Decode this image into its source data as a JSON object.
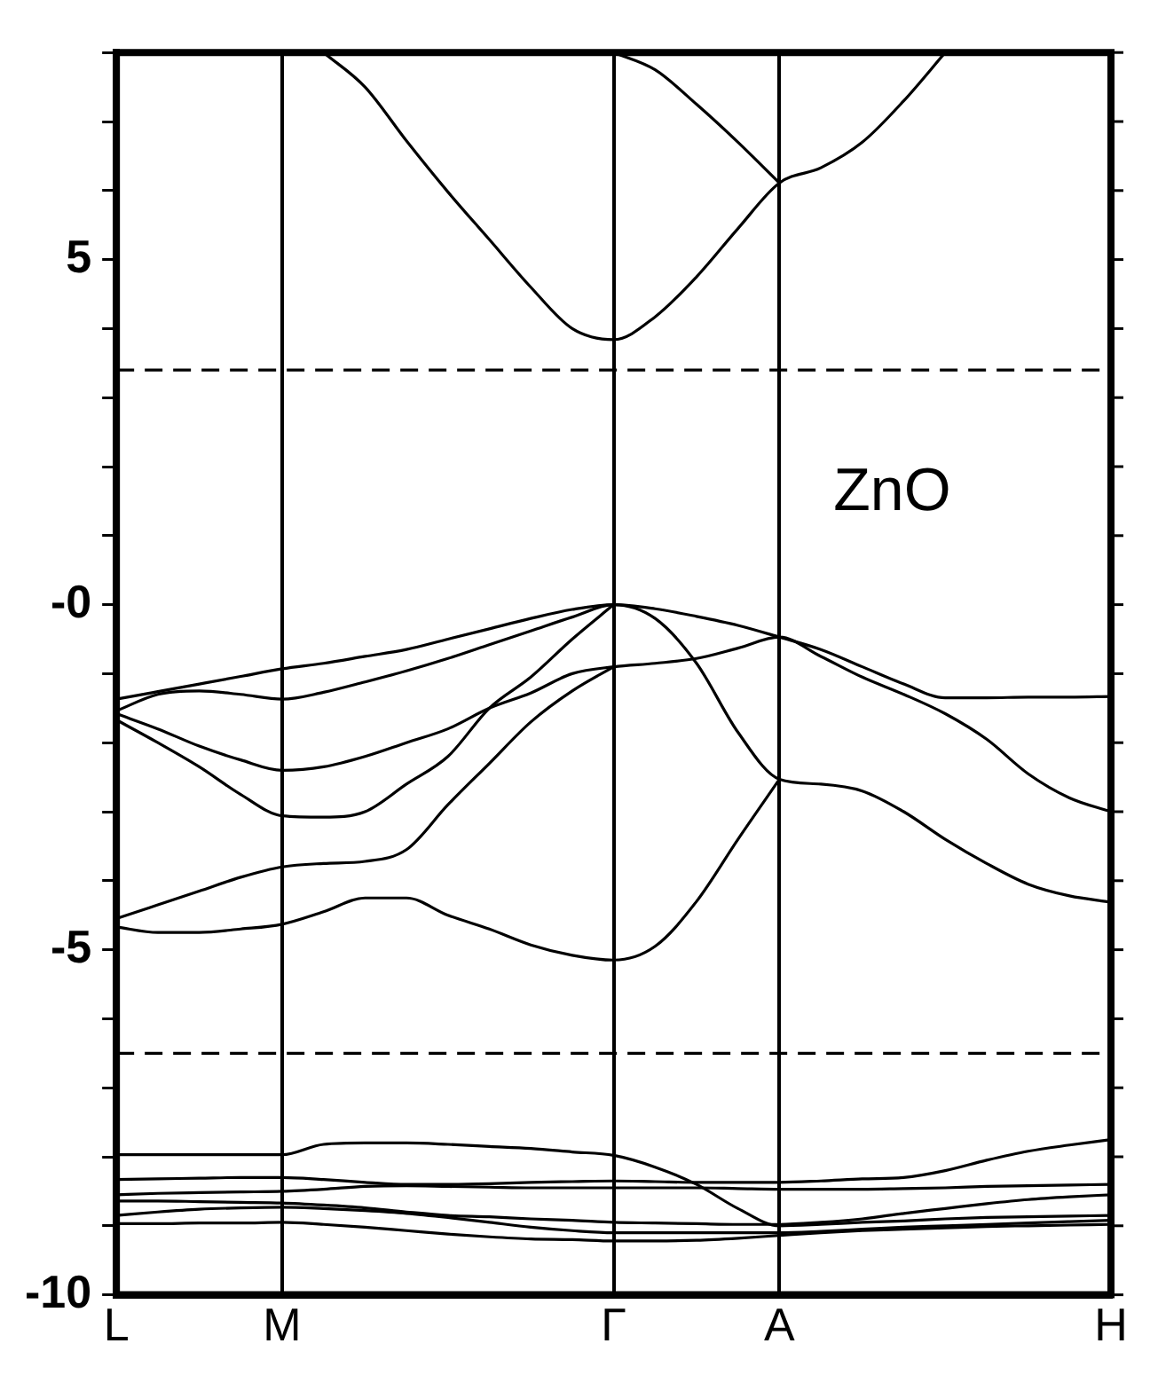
{
  "chart_data": {
    "type": "line",
    "annotations": [
      "ZnO"
    ],
    "categories": [
      "L",
      null,
      null,
      null,
      "M",
      null,
      null,
      null,
      null,
      null,
      null,
      null,
      "Γ",
      null,
      null,
      null,
      "A",
      null,
      null,
      null,
      null,
      null,
      null,
      null,
      "H"
    ],
    "ylim": [
      -10,
      8
    ],
    "yticks": [
      {
        "value": -10,
        "label": "-10"
      },
      {
        "value": -9,
        "label": null
      },
      {
        "value": -8,
        "label": null
      },
      {
        "value": -7,
        "label": null
      },
      {
        "value": -6,
        "label": null
      },
      {
        "value": -5,
        "label": "-5"
      },
      {
        "value": -4,
        "label": null
      },
      {
        "value": -3,
        "label": null
      },
      {
        "value": -2,
        "label": null
      },
      {
        "value": -1,
        "label": null
      },
      {
        "value": 0,
        "label": "-0"
      },
      {
        "value": 1,
        "label": null
      },
      {
        "value": 2,
        "label": null
      },
      {
        "value": 3,
        "label": null
      },
      {
        "value": 4,
        "label": null
      },
      {
        "value": 5,
        "label": "5"
      },
      {
        "value": 6,
        "label": null
      },
      {
        "value": 7,
        "label": null
      },
      {
        "value": 8,
        "label": null
      }
    ],
    "grid": "x",
    "legend": false,
    "marker": "none",
    "line_style": "solid",
    "ref_lines": [
      {
        "axis": "y",
        "value": 3.4,
        "color": "#000000",
        "line_style": "dashed"
      },
      {
        "axis": "y",
        "value": -6.5,
        "color": "#000000",
        "line_style": "dashed"
      }
    ],
    "series": [
      {
        "color": "#000000",
        "values": [
          null,
          null,
          null,
          null,
          null,
          8,
          7.5,
          6.72,
          5.98,
          5.29,
          4.6,
          4.0,
          3.84,
          4.17,
          4.75,
          5.45,
          6.11,
          6.33,
          6.7,
          7.3,
          8,
          null,
          null,
          null,
          null
        ]
      },
      {
        "color": "#000000",
        "values": [
          null,
          null,
          null,
          null,
          null,
          null,
          null,
          null,
          null,
          null,
          null,
          null,
          8,
          7.75,
          7.25,
          6.7,
          6.11,
          null,
          null,
          null,
          null,
          null,
          null,
          null,
          null
        ]
      },
      {
        "color": "#000000",
        "values": [
          -1.37,
          -1.26,
          -1.15,
          -1.04,
          -0.93,
          -0.85,
          -0.75,
          -0.65,
          -0.5,
          -0.35,
          -0.2,
          -0.07,
          0,
          -0.06,
          -0.17,
          -0.3,
          -0.47,
          -0.65,
          -0.9,
          -1.15,
          -1.35,
          -1.35,
          -1.34,
          -1.34,
          -1.33
        ]
      },
      {
        "color": "#000000",
        "values": [
          -1.54,
          -1.3,
          -1.25,
          -1.3,
          -1.37,
          -1.27,
          -1.12,
          -0.96,
          -0.78,
          -0.58,
          -0.38,
          -0.18,
          0,
          -0.2,
          -0.85,
          -1.85,
          -2.53,
          -2.6,
          -2.7,
          -3.0,
          -3.4,
          -3.75,
          -4.05,
          -4.22,
          -4.31
        ]
      },
      {
        "color": "#000000",
        "values": [
          -1.58,
          -1.8,
          -2.05,
          -2.25,
          -2.4,
          -2.35,
          -2.2,
          -2.0,
          -1.8,
          -1.5,
          -1.28,
          -1.0,
          -0.9,
          -0.85,
          -0.78,
          -0.63,
          -0.47,
          -0.75,
          -1.05,
          -1.3,
          -1.58,
          -1.95,
          -2.45,
          -2.8,
          -3.0
        ]
      },
      {
        "color": "#000000",
        "values": [
          -1.67,
          -2.0,
          -2.35,
          -2.75,
          -3.06,
          -3.08,
          -3.0,
          -2.6,
          -2.2,
          -1.5,
          -1.05,
          -0.5,
          0,
          null,
          null,
          null,
          null,
          null,
          null,
          null,
          null,
          null,
          null,
          null,
          null
        ]
      },
      {
        "color": "#000000",
        "values": [
          -4.55,
          -4.35,
          -4.15,
          -3.95,
          -3.8,
          -3.75,
          -3.72,
          -3.55,
          -2.9,
          -2.3,
          -1.7,
          -1.25,
          -0.9,
          null,
          null,
          null,
          null,
          null,
          null,
          null,
          null,
          null,
          null,
          null,
          null
        ]
      },
      {
        "color": "#000000",
        "values": [
          -4.67,
          -4.75,
          -4.75,
          -4.7,
          -4.63,
          -4.45,
          -4.25,
          -4.25,
          -4.5,
          -4.7,
          -4.93,
          -5.08,
          -5.15,
          -4.95,
          -4.3,
          -3.4,
          -2.53,
          null,
          null,
          null,
          null,
          null,
          null,
          null,
          null
        ]
      },
      {
        "color": "#000000",
        "values": [
          -7.97,
          -7.97,
          -7.97,
          -7.97,
          -7.97,
          -7.82,
          -7.8,
          -7.8,
          -7.82,
          -7.85,
          -7.88,
          -7.93,
          -7.98,
          -8.15,
          -8.4,
          -8.75,
          -9.0,
          -8.98,
          -8.95,
          -8.93,
          -8.9,
          -8.88,
          -8.87,
          -8.86,
          -8.85
        ]
      },
      {
        "color": "#000000",
        "values": [
          -8.33,
          -8.32,
          -8.31,
          -8.3,
          -8.3,
          -8.33,
          -8.37,
          -8.4,
          -8.4,
          -8.39,
          -8.37,
          -8.36,
          -8.35,
          -8.36,
          -8.37,
          -8.37,
          -8.37,
          -8.35,
          -8.32,
          -8.3,
          -8.2,
          -8.05,
          -7.92,
          -7.83,
          -7.75
        ]
      },
      {
        "color": "#000000",
        "values": [
          -8.55,
          -8.53,
          -8.52,
          -8.51,
          -8.5,
          -8.47,
          -8.43,
          -8.42,
          -8.43,
          -8.44,
          -8.45,
          -8.45,
          -8.45,
          -8.45,
          -8.45,
          -8.46,
          -8.47,
          -8.47,
          -8.47,
          -8.46,
          -8.45,
          -8.43,
          -8.42,
          -8.41,
          -8.4
        ]
      },
      {
        "color": "#000000",
        "values": [
          -8.64,
          -8.64,
          -8.65,
          -8.66,
          -8.67,
          -8.7,
          -8.74,
          -8.8,
          -8.85,
          -8.87,
          -8.9,
          -8.92,
          -8.95,
          -8.96,
          -8.97,
          -8.98,
          -8.98,
          -8.95,
          -8.9,
          -8.82,
          -8.75,
          -8.68,
          -8.62,
          -8.58,
          -8.55
        ]
      },
      {
        "color": "#000000",
        "values": [
          -8.85,
          -8.8,
          -8.76,
          -8.74,
          -8.73,
          -8.75,
          -8.78,
          -8.82,
          -8.88,
          -8.95,
          -9.02,
          -9.07,
          -9.1,
          -9.1,
          -9.1,
          -9.1,
          -9.1,
          -9.08,
          -9.05,
          -9.02,
          -9.0,
          -8.98,
          -8.96,
          -8.94,
          -8.92
        ]
      },
      {
        "color": "#000000",
        "values": [
          -8.97,
          -8.97,
          -8.96,
          -8.96,
          -8.95,
          -8.98,
          -9.02,
          -9.07,
          -9.12,
          -9.16,
          -9.19,
          -9.2,
          -9.22,
          -9.22,
          -9.21,
          -9.18,
          -9.14,
          -9.1,
          -9.07,
          -9.05,
          -9.03,
          -9.01,
          -9.0,
          -8.99,
          -8.98
        ]
      }
    ]
  }
}
